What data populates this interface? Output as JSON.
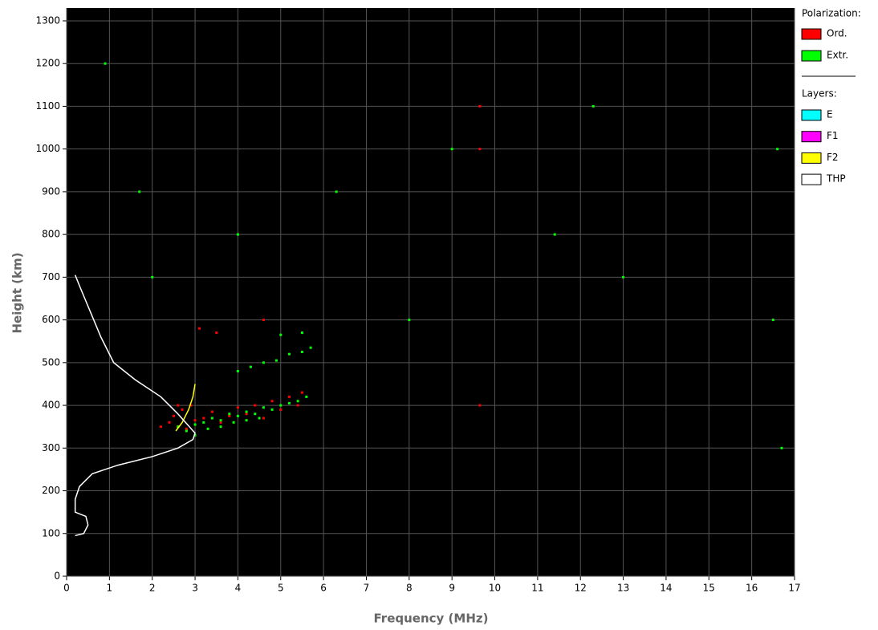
{
  "chart_data": {
    "type": "scatter",
    "xlabel": "Frequency (MHz)",
    "ylabel": "Height (km)",
    "xlim": [
      0,
      17
    ],
    "ylim": [
      0,
      1330
    ],
    "xticks": [
      0,
      1,
      2,
      3,
      4,
      5,
      6,
      7,
      8,
      9,
      10,
      11,
      12,
      13,
      14,
      15,
      16,
      17
    ],
    "yticks": [
      0,
      100,
      200,
      300,
      400,
      500,
      600,
      700,
      800,
      900,
      1000,
      1100,
      1200,
      1300
    ],
    "grid": true,
    "legend_title": "Polarization:",
    "series": [
      {
        "name": "Ord.",
        "color": "#ff0000",
        "x": [
          2.4,
          2.5,
          2.6,
          2.7,
          2.8,
          2.9,
          3.0,
          3.2,
          3.4,
          3.6,
          3.8,
          4.0,
          4.2,
          4.4,
          4.6,
          4.8,
          5.0,
          5.2,
          5.4,
          5.5,
          2.2,
          2.6,
          3.1,
          3.5,
          4.6,
          9.65,
          9.65,
          9.65
        ],
        "values": [
          360,
          375,
          350,
          390,
          345,
          400,
          365,
          370,
          385,
          360,
          375,
          395,
          380,
          400,
          370,
          410,
          390,
          420,
          400,
          430,
          350,
          400,
          580,
          570,
          600,
          1000,
          1100,
          400
        ]
      },
      {
        "name": "Extr.",
        "color": "#00ff00",
        "x": [
          2.6,
          2.8,
          3.0,
          3.2,
          3.4,
          3.6,
          3.8,
          4.0,
          4.2,
          4.4,
          4.6,
          4.8,
          5.0,
          5.2,
          5.4,
          5.6,
          3.0,
          3.3,
          3.6,
          3.9,
          4.2,
          4.5,
          4.0,
          4.3,
          4.6,
          4.9,
          5.2,
          5.5,
          5.7,
          5.0,
          5.5,
          0.9,
          1.7,
          2.0,
          4.0,
          6.3,
          8.0,
          9.0,
          11.4,
          12.3,
          13.0,
          16.6,
          16.5,
          16.7
        ],
        "values": [
          350,
          340,
          355,
          360,
          370,
          365,
          380,
          375,
          385,
          380,
          395,
          390,
          400,
          405,
          410,
          420,
          330,
          345,
          350,
          360,
          365,
          370,
          480,
          490,
          500,
          505,
          520,
          525,
          535,
          565,
          570,
          1200,
          900,
          700,
          800,
          900,
          600,
          1000,
          800,
          1100,
          700,
          1000,
          600,
          300
        ]
      }
    ],
    "layers_title": "Layers:",
    "layers": [
      {
        "name": "E",
        "color": "#00ffff",
        "x": [],
        "values": []
      },
      {
        "name": "F1",
        "color": "#ff00ff",
        "x": [],
        "values": []
      },
      {
        "name": "F2",
        "color": "#ffff00",
        "x": [
          2.55,
          2.7,
          2.85,
          2.95,
          3.0
        ],
        "values": [
          340,
          360,
          390,
          420,
          450
        ]
      },
      {
        "name": "THP",
        "color": "#ffffff",
        "x": [
          0.2,
          0.4,
          0.5,
          0.45,
          0.2,
          0.2,
          0.3,
          0.6,
          1.2,
          2.0,
          2.6,
          2.95,
          3.0,
          2.6,
          2.2,
          1.6,
          1.1,
          0.8,
          0.55,
          0.3,
          0.2
        ],
        "values": [
          95,
          100,
          120,
          140,
          150,
          180,
          210,
          240,
          260,
          280,
          300,
          320,
          335,
          380,
          420,
          460,
          500,
          560,
          620,
          680,
          705
        ]
      }
    ]
  }
}
